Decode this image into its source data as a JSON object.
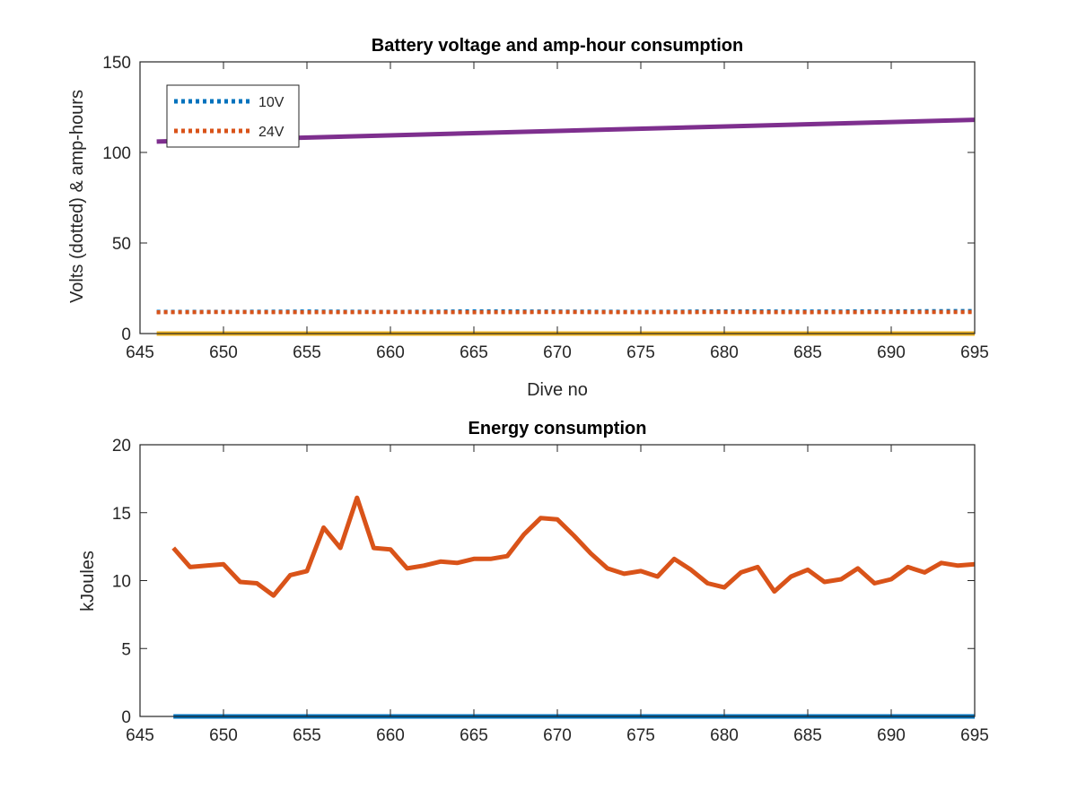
{
  "chart_data": [
    {
      "type": "line",
      "title": "Battery voltage and amp-hour consumption",
      "xlabel": "Dive no",
      "ylabel": "Volts (dotted) & amp-hours",
      "xlim": [
        645,
        695
      ],
      "ylim": [
        0,
        150
      ],
      "xticks": [
        645,
        650,
        655,
        660,
        665,
        670,
        675,
        680,
        685,
        690,
        695
      ],
      "yticks": [
        0,
        50,
        100,
        150
      ],
      "grid": false,
      "legend": {
        "placement": "top-left",
        "entries": [
          "10V",
          "24V"
        ]
      },
      "series": [
        {
          "name": "10V",
          "style": "dotted",
          "color": "#0072BD",
          "x": [
            646,
            650,
            655,
            660,
            665,
            670,
            675,
            680,
            685,
            690,
            695
          ],
          "y": [
            12,
            12,
            12.2,
            12,
            12.3,
            12.2,
            12,
            12.3,
            12.2,
            12.3,
            12.5
          ]
        },
        {
          "name": "24V",
          "style": "dotted",
          "color": "#D95319",
          "x": [
            646,
            650,
            655,
            660,
            665,
            670,
            675,
            680,
            685,
            690,
            695
          ],
          "y": [
            11.8,
            11.9,
            11.8,
            11.9,
            11.8,
            11.9,
            11.8,
            11.9,
            11.8,
            11.9,
            11.9
          ]
        },
        {
          "style": "solid",
          "color": "#7E2F8E",
          "x": [
            646,
            695
          ],
          "y": [
            106,
            118
          ]
        },
        {
          "style": "solid",
          "color": "#EDB120",
          "x": [
            646,
            695
          ],
          "y": [
            0,
            0
          ]
        }
      ]
    },
    {
      "type": "line",
      "title": "Energy consumption",
      "xlabel": "",
      "ylabel": "kJoules",
      "xlim": [
        645,
        695
      ],
      "ylim": [
        0,
        20
      ],
      "xticks": [
        645,
        650,
        655,
        660,
        665,
        670,
        675,
        680,
        685,
        690,
        695
      ],
      "yticks": [
        0,
        5,
        10,
        15,
        20
      ],
      "grid": false,
      "series": [
        {
          "style": "solid",
          "color": "#0072BD",
          "x": [
            647,
            695
          ],
          "y": [
            0,
            0
          ]
        },
        {
          "style": "solid",
          "color": "#D95319",
          "x": [
            647,
            648,
            649,
            650,
            651,
            652,
            653,
            654,
            655,
            656,
            657,
            658,
            659,
            660,
            661,
            662,
            663,
            664,
            665,
            666,
            667,
            668,
            669,
            670,
            671,
            672,
            673,
            674,
            675,
            676,
            677,
            678,
            679,
            680,
            681,
            682,
            683,
            684,
            685,
            686,
            687,
            688,
            689,
            690,
            691,
            692,
            693,
            694,
            695
          ],
          "y": [
            12.4,
            11.0,
            11.1,
            11.2,
            9.9,
            9.8,
            8.9,
            10.4,
            10.7,
            13.9,
            12.4,
            16.1,
            12.4,
            12.3,
            10.9,
            11.1,
            11.4,
            11.3,
            11.6,
            11.6,
            11.8,
            13.4,
            14.6,
            14.5,
            13.3,
            12.0,
            10.9,
            10.5,
            10.7,
            10.3,
            11.6,
            10.8,
            9.8,
            9.5,
            10.6,
            11.0,
            9.2,
            10.3,
            10.8,
            9.9,
            10.1,
            10.9,
            9.8,
            10.1,
            11.0,
            10.6,
            11.3,
            11.1,
            11.2
          ]
        }
      ]
    }
  ]
}
